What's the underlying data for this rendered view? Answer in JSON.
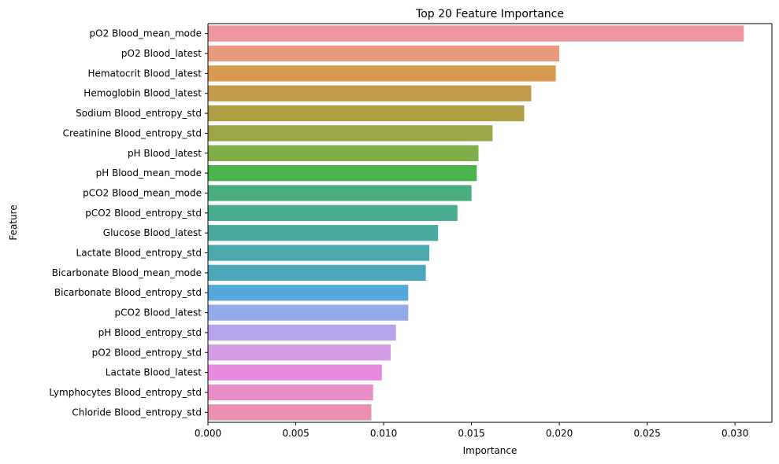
{
  "chart_data": {
    "type": "bar",
    "orientation": "horizontal",
    "title": "Top 20 Feature Importance",
    "xlabel": "Importance",
    "ylabel": "Feature",
    "xlim": [
      0,
      0.0321
    ],
    "xticks": [
      "0.000",
      "0.005",
      "0.010",
      "0.015",
      "0.020",
      "0.025",
      "0.030"
    ],
    "xtick_values": [
      0,
      0.005,
      0.01,
      0.015,
      0.02,
      0.025,
      0.03
    ],
    "grid": false,
    "legend": "none",
    "categories": [
      "pO2 Blood_mean_mode",
      "pO2 Blood_latest",
      "Hematocrit Blood_latest",
      "Hemoglobin Blood_latest",
      "Sodium Blood_entropy_std",
      "Creatinine Blood_entropy_std",
      "pH Blood_latest",
      "pH Blood_mean_mode",
      "pCO2 Blood_mean_mode",
      "pCO2 Blood_entropy_std",
      "Glucose Blood_latest",
      "Lactate Blood_entropy_std",
      "Bicarbonate Blood_mean_mode",
      "Bicarbonate Blood_entropy_std",
      "pCO2 Blood_latest",
      "pH Blood_entropy_std",
      "pO2 Blood_entropy_std",
      "Lactate Blood_latest",
      "Lymphocytes Blood_entropy_std",
      "Chloride Blood_entropy_std"
    ],
    "values": [
      0.0305,
      0.02,
      0.0198,
      0.0184,
      0.018,
      0.0162,
      0.0154,
      0.0153,
      0.015,
      0.0142,
      0.0131,
      0.0126,
      0.0124,
      0.0114,
      0.0114,
      0.0107,
      0.0104,
      0.0099,
      0.0094,
      0.0093
    ],
    "colors": [
      "#ed96a0",
      "#e89a7e",
      "#d89a50",
      "#c29b4a",
      "#b09e47",
      "#9da646",
      "#80ae48",
      "#4bb44e",
      "#4cae7e",
      "#4aac90",
      "#4aaaa0",
      "#4ba9ad",
      "#4ba7bb",
      "#55a9da",
      "#93abe9",
      "#b6a3ee",
      "#d49ce6",
      "#e88be0",
      "#e98ec8",
      "#eb90b3"
    ]
  }
}
